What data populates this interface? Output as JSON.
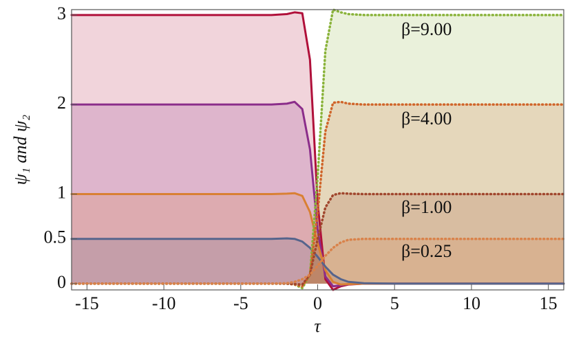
{
  "chart_data": {
    "type": "line",
    "xlabel": "τ",
    "ylabel": "ψ₁ and ψ₂",
    "x": [
      -16,
      -3,
      -2,
      -1.5,
      -1,
      -0.5,
      0,
      0.5,
      1,
      1.5,
      2,
      3,
      5,
      16
    ],
    "series": [
      {
        "color": "#b0103a",
        "style": "solid",
        "values": [
          3,
          3,
          3.01,
          3.03,
          3.02,
          2.5,
          0.9,
          0.05,
          -0.07,
          -0.03,
          -0.01,
          0,
          0,
          0
        ]
      },
      {
        "color": "#8b2d8a",
        "style": "solid",
        "values": [
          2,
          2,
          2.01,
          2.03,
          1.95,
          1.5,
          0.6,
          0.08,
          -0.03,
          -0.02,
          -0.005,
          0,
          0,
          0
        ]
      },
      {
        "color": "#d98033",
        "style": "solid",
        "values": [
          1,
          1,
          1.005,
          1.01,
          0.98,
          0.8,
          0.45,
          0.15,
          0.02,
          -0.01,
          -0.005,
          0,
          0,
          0
        ]
      },
      {
        "color": "#56648c",
        "style": "solid",
        "values": [
          0.5,
          0.5,
          0.505,
          0.5,
          0.47,
          0.4,
          0.3,
          0.19,
          0.1,
          0.05,
          0.02,
          0.005,
          0,
          0
        ]
      },
      {
        "color": "#8ab33a",
        "style": "dotted",
        "values": [
          0,
          0,
          0,
          -0.01,
          -0.05,
          0.1,
          1.2,
          2.6,
          3.06,
          3.03,
          3.01,
          3,
          3,
          3
        ]
      },
      {
        "color": "#d0652a",
        "style": "dotted",
        "values": [
          0,
          0,
          0,
          -0.01,
          -0.03,
          0.1,
          0.8,
          1.7,
          2.02,
          2.03,
          2.01,
          2,
          2,
          2
        ]
      },
      {
        "color": "#a0462d",
        "style": "dotted",
        "values": [
          0,
          0,
          0,
          -0.005,
          -0.01,
          0.1,
          0.5,
          0.85,
          0.99,
          1.01,
          1.005,
          1,
          1,
          1
        ]
      },
      {
        "color": "#d9824a",
        "style": "dotted",
        "values": [
          0,
          0,
          0.005,
          0.02,
          0.05,
          0.1,
          0.2,
          0.31,
          0.4,
          0.46,
          0.49,
          0.5,
          0.5,
          0.5
        ]
      }
    ],
    "annotations": [
      "β=9.00",
      "β=4.00",
      "β=1.00",
      "β=0.25"
    ],
    "xlim": [
      -16,
      16
    ],
    "xticks": [
      -15,
      -10,
      -5,
      0,
      5,
      10,
      15
    ],
    "ylim": [
      -0.07,
      3.06
    ],
    "yticks": [
      0,
      0.5,
      1,
      2,
      3
    ],
    "fill": true
  }
}
